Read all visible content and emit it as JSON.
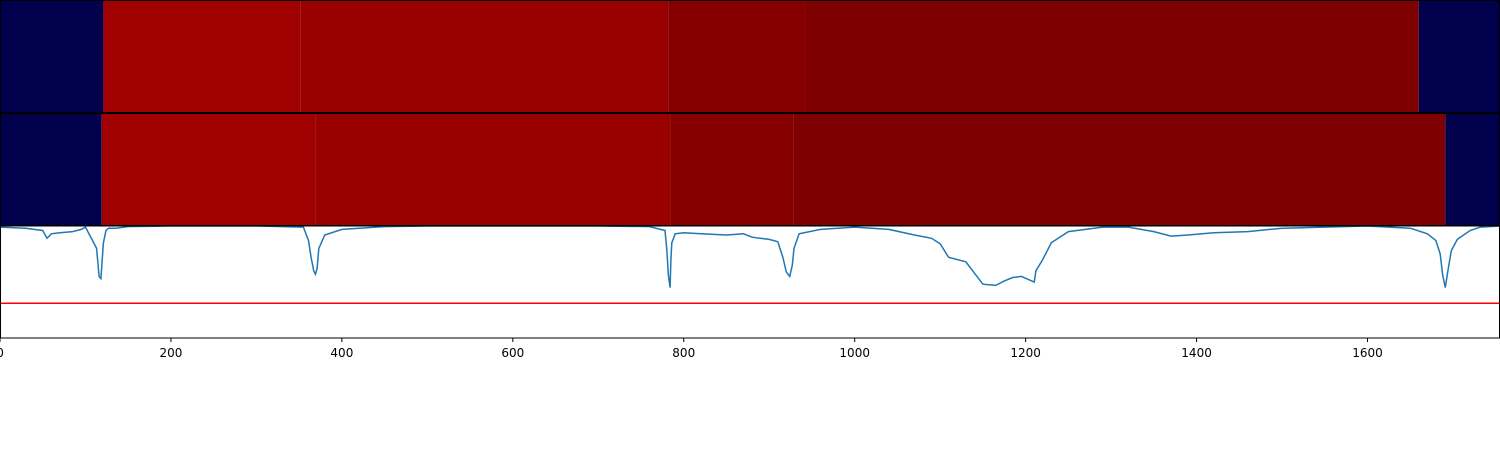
{
  "chart_data": [
    {
      "type": "heatmap",
      "panel": "top",
      "colorscale": "seismic",
      "color_range": [
        -1,
        1
      ],
      "x_range": [
        0,
        1755
      ],
      "segments": [
        {
          "start": 0,
          "end": 121,
          "value": -0.82,
          "color": "#00004c"
        },
        {
          "start": 121,
          "end": 352,
          "value": 0.78,
          "color": "#a10000"
        },
        {
          "start": 352,
          "end": 782,
          "value": 0.8,
          "color": "#990000"
        },
        {
          "start": 782,
          "end": 943,
          "value": 0.87,
          "color": "#870000"
        },
        {
          "start": 943,
          "end": 1660,
          "value": 0.94,
          "color": "#7e0000"
        },
        {
          "start": 1660,
          "end": 1755,
          "value": -0.82,
          "color": "#00004c"
        }
      ]
    },
    {
      "type": "heatmap",
      "panel": "middle",
      "colorscale": "seismic",
      "color_range": [
        -1,
        1
      ],
      "x_range": [
        0,
        1755
      ],
      "segments": [
        {
          "start": 0,
          "end": 119,
          "value": -0.82,
          "color": "#00004c"
        },
        {
          "start": 119,
          "end": 369,
          "value": 0.78,
          "color": "#a10000"
        },
        {
          "start": 369,
          "end": 784,
          "value": 0.8,
          "color": "#990000"
        },
        {
          "start": 784,
          "end": 928,
          "value": 0.87,
          "color": "#870000"
        },
        {
          "start": 928,
          "end": 1691,
          "value": 0.94,
          "color": "#7e0000"
        },
        {
          "start": 1691,
          "end": 1755,
          "value": -0.82,
          "color": "#00004c"
        }
      ]
    },
    {
      "type": "line",
      "panel": "bottom",
      "xlim": [
        0,
        1755
      ],
      "ylim": [
        0,
        1
      ],
      "x_ticks": [
        0,
        200,
        400,
        600,
        800,
        1000,
        1200,
        1400,
        1600
      ],
      "x_tick_labels": [
        "0",
        "200",
        "400",
        "600",
        "800",
        "1000",
        "1200",
        "1400",
        "1600"
      ],
      "threshold": {
        "y": 0.31,
        "color": "#ff0000"
      },
      "series": [
        {
          "color": "#1f77b4",
          "x": [
            0,
            30,
            50,
            55,
            60,
            70,
            85,
            95,
            100,
            113,
            116,
            118,
            121,
            124,
            127,
            135,
            150,
            200,
            300,
            355,
            361,
            364,
            367,
            369,
            371,
            373,
            380,
            400,
            450,
            500,
            600,
            700,
            760,
            778,
            780,
            782,
            784,
            785,
            786,
            790,
            800,
            820,
            850,
            870,
            880,
            900,
            910,
            916,
            920,
            924,
            927,
            929,
            935,
            960,
            1000,
            1040,
            1070,
            1090,
            1100,
            1110,
            1130,
            1150,
            1165,
            1175,
            1185,
            1195,
            1210,
            1212,
            1220,
            1230,
            1250,
            1290,
            1320,
            1350,
            1370,
            1390,
            1420,
            1460,
            1500,
            1550,
            1600,
            1650,
            1670,
            1680,
            1685,
            1688,
            1691,
            1694,
            1698,
            1705,
            1720,
            1732,
            1755
          ],
          "y": [
            0.99,
            0.98,
            0.96,
            0.89,
            0.93,
            0.94,
            0.95,
            0.97,
            0.99,
            0.8,
            0.55,
            0.53,
            0.85,
            0.96,
            0.98,
            0.98,
            0.995,
            1.0,
            1.0,
            0.99,
            0.87,
            0.72,
            0.6,
            0.57,
            0.62,
            0.8,
            0.92,
            0.97,
            0.995,
            1.0,
            1.0,
            1.0,
            0.995,
            0.96,
            0.8,
            0.56,
            0.45,
            0.7,
            0.85,
            0.93,
            0.94,
            0.93,
            0.92,
            0.93,
            0.9,
            0.88,
            0.86,
            0.72,
            0.59,
            0.55,
            0.65,
            0.8,
            0.93,
            0.97,
            0.99,
            0.97,
            0.92,
            0.89,
            0.84,
            0.72,
            0.68,
            0.48,
            0.47,
            0.51,
            0.54,
            0.55,
            0.5,
            0.6,
            0.7,
            0.85,
            0.95,
            0.99,
            0.99,
            0.95,
            0.91,
            0.92,
            0.94,
            0.95,
            0.98,
            0.99,
            1.0,
            0.98,
            0.93,
            0.87,
            0.75,
            0.56,
            0.45,
            0.6,
            0.78,
            0.88,
            0.96,
            0.99,
            1.0
          ]
        }
      ]
    }
  ]
}
